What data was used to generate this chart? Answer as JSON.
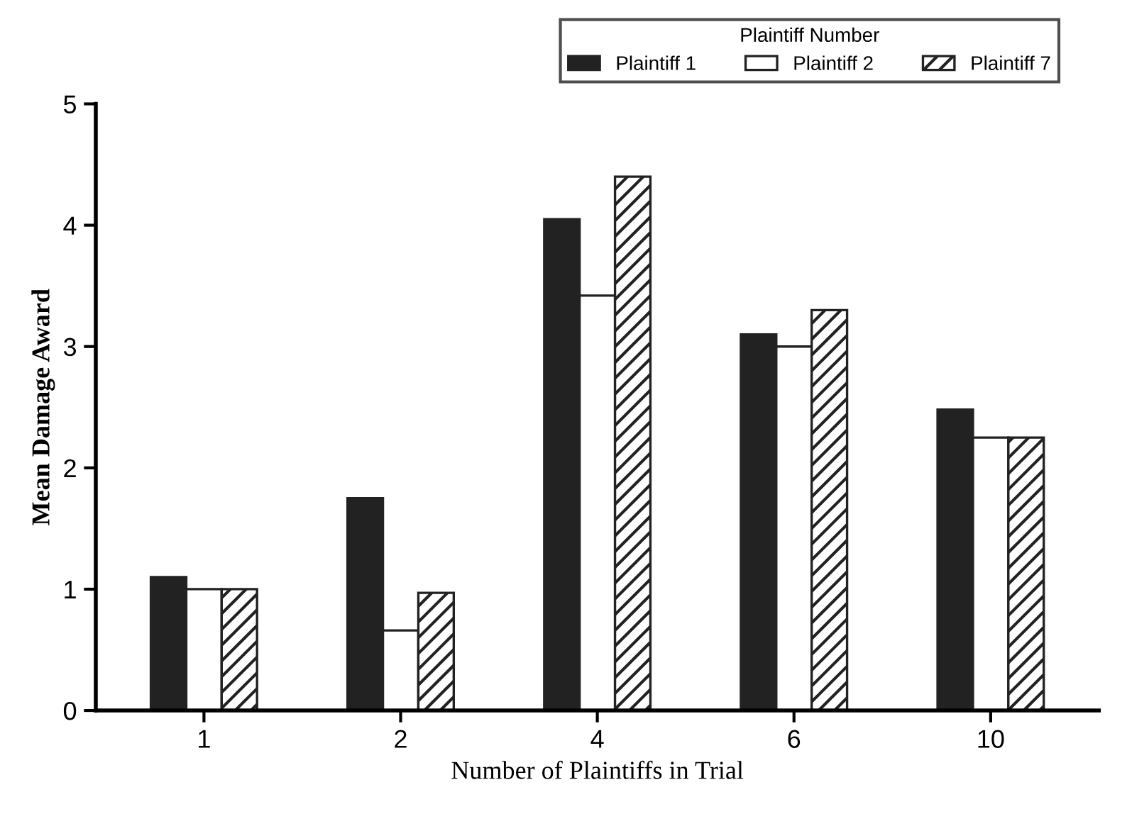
{
  "chart_data": {
    "type": "bar",
    "xlabel": "Number of Plaintiffs in Trial",
    "ylabel": "Mean Damage Award",
    "legend_title": "Plaintiff Number",
    "categories": [
      "1",
      "2",
      "4",
      "6",
      "10"
    ],
    "series": [
      {
        "name": "Plaintiff 1",
        "color": "#222222",
        "values": [
          1.1,
          1.75,
          4.05,
          3.1,
          2.48
        ]
      },
      {
        "name": "Plaintiff 2",
        "color": "#ffffff",
        "values": [
          1.0,
          0.66,
          3.42,
          3.0,
          2.25
        ]
      },
      {
        "name": "Plaintiff 7",
        "color": "#222222",
        "values": [
          1.0,
          0.97,
          4.4,
          3.3,
          2.25
        ]
      }
    ],
    "ylim": [
      0,
      5
    ],
    "yticks": [
      0,
      1,
      2,
      3,
      4,
      5
    ],
    "grid": false,
    "legend": "top right"
  }
}
